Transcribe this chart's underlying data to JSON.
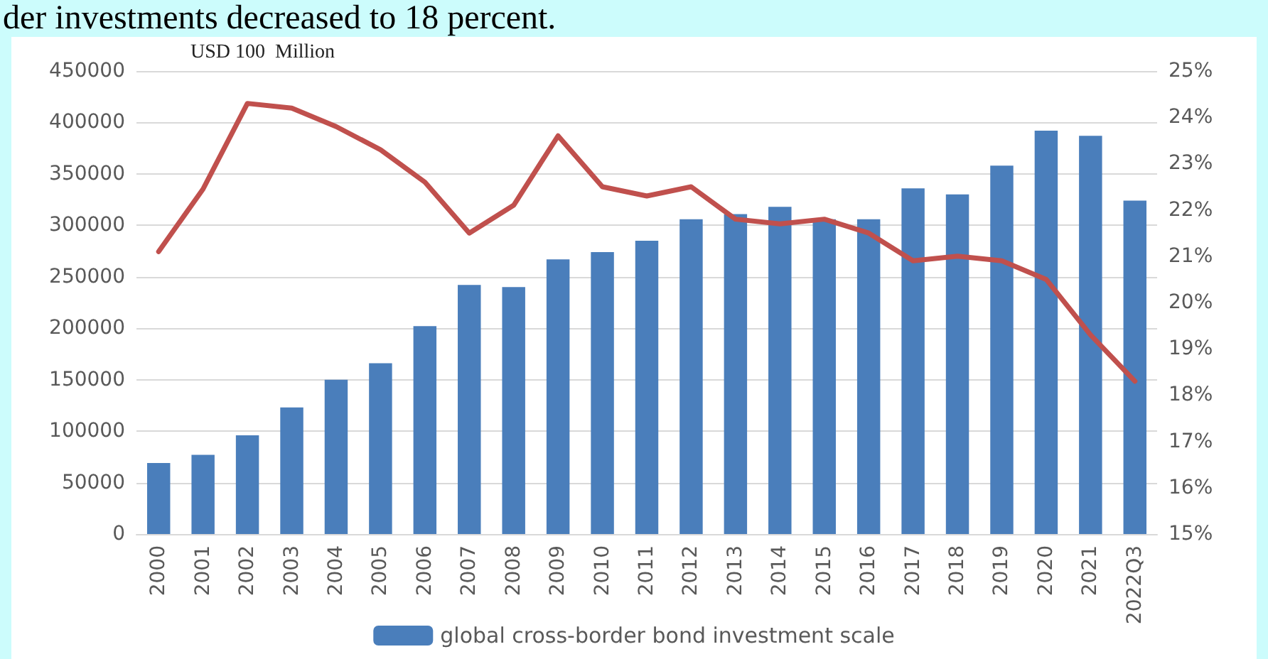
{
  "chart_data": {
    "type": "bar",
    "ylabel": "USD 100  Million",
    "annotations": [
      "der investments decreased to 18 percent."
    ],
    "categories": [
      "2000",
      "2001",
      "2002",
      "2003",
      "2004",
      "2005",
      "2006",
      "2007",
      "2008",
      "2009",
      "2010",
      "2011",
      "2012",
      "2013",
      "2014",
      "2015",
      "2016",
      "2017",
      "2018",
      "2019",
      "2020",
      "2021",
      "2022Q3"
    ],
    "series": [
      {
        "name": "global cross-border bond investment scale",
        "color": "#4a7ebb",
        "values": [
          69000,
          77000,
          96000,
          123000,
          150000,
          166000,
          202000,
          242000,
          240000,
          267000,
          274000,
          285000,
          306000,
          311000,
          318000,
          306000,
          306000,
          336000,
          330000,
          358000,
          392000,
          387000,
          324000
        ]
      },
      {
        "type": "line",
        "axis": "y2",
        "color": "#c0504d",
        "values": [
          21.1,
          22.45,
          24.3,
          24.2,
          23.8,
          23.3,
          22.6,
          21.5,
          22.1,
          23.6,
          22.5,
          22.3,
          22.5,
          21.8,
          21.7,
          21.8,
          21.5,
          20.9,
          21.0,
          20.9,
          20.5,
          19.3,
          18.3
        ]
      }
    ],
    "ylim": [
      0,
      450000
    ],
    "yticks": [
      0,
      50000,
      100000,
      150000,
      200000,
      250000,
      300000,
      350000,
      400000,
      450000
    ],
    "y2lim": [
      15,
      25
    ],
    "y2ticks": [
      {
        "value": 15,
        "label": "15%"
      },
      {
        "value": 16,
        "label": "16%"
      },
      {
        "value": 17,
        "label": "17%"
      },
      {
        "value": 18,
        "label": "18%"
      },
      {
        "value": 19,
        "label": "19%"
      },
      {
        "value": 20,
        "label": "20%"
      },
      {
        "value": 21,
        "label": "21%"
      },
      {
        "value": 22,
        "label": "22%"
      },
      {
        "value": 23,
        "label": "23%"
      },
      {
        "value": 24,
        "label": "24%"
      },
      {
        "value": 25,
        "label": "25%"
      }
    ],
    "grid": "y",
    "legend": "bottom",
    "marker": "none",
    "line_style": "solid"
  }
}
